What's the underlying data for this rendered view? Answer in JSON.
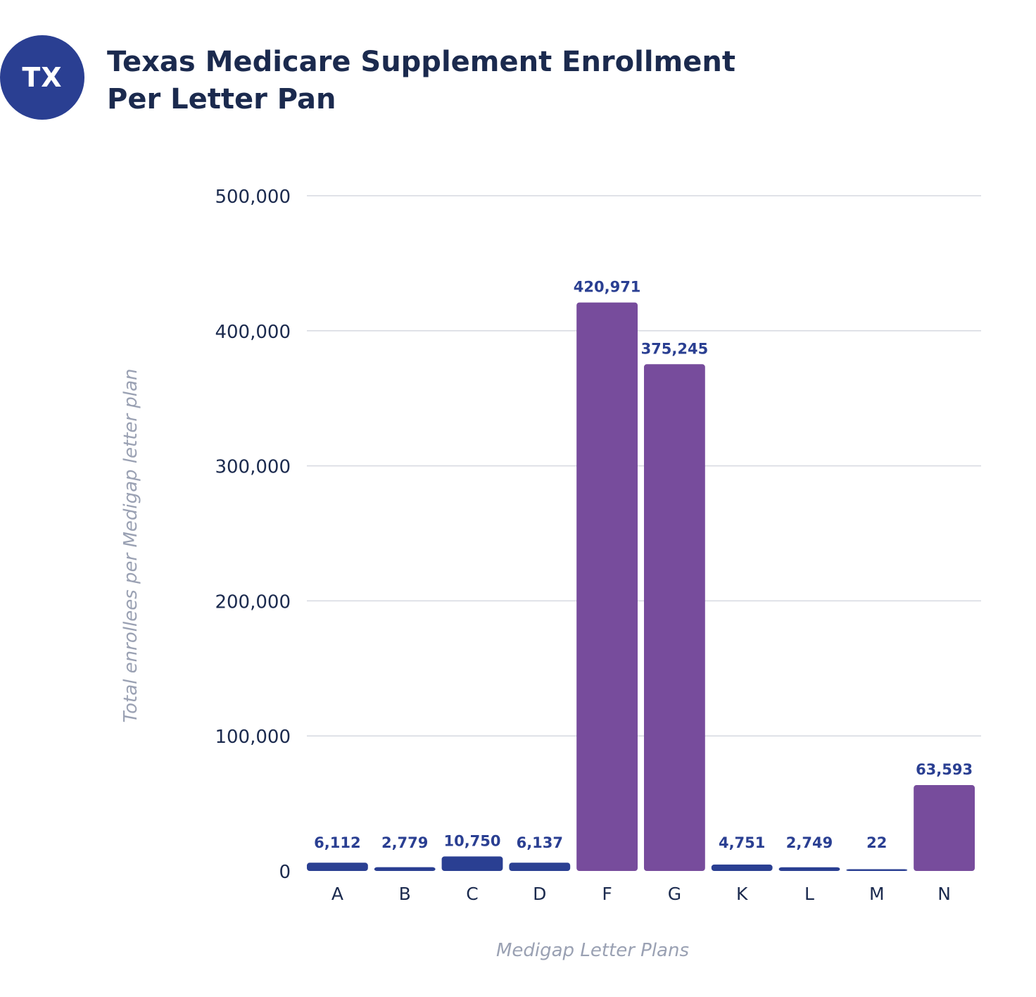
{
  "badge": {
    "text": "TX"
  },
  "title": {
    "line1": "Texas Medicare Supplement Enrollment",
    "line2": "Per Letter Pan"
  },
  "colors": {
    "primary": "#2a3f92",
    "highlight": "#774c9c",
    "grid": "#d6d9e0",
    "text": "#1b2a4e",
    "axis_label": "#9aa1b3"
  },
  "chart_data": {
    "type": "bar",
    "title": "Texas Medicare Supplement Enrollment Per Letter Pan",
    "xlabel": "Medigap Letter Plans",
    "ylabel": "Total enrollees per Medigap letter plan",
    "categories": [
      "A",
      "B",
      "C",
      "D",
      "F",
      "G",
      "K",
      "L",
      "M",
      "N"
    ],
    "values": [
      6112,
      2779,
      10750,
      6137,
      420971,
      375245,
      4751,
      2749,
      22,
      63593
    ],
    "value_labels": [
      "6,112",
      "2,779",
      "10,750",
      "6,137",
      "420,971",
      "375,245",
      "4,751",
      "2,749",
      "22",
      "63,593"
    ],
    "bar_colors": [
      "#2a3f92",
      "#2a3f92",
      "#2a3f92",
      "#2a3f92",
      "#774c9c",
      "#774c9c",
      "#2a3f92",
      "#2a3f92",
      "#2a3f92",
      "#774c9c"
    ],
    "ylim": [
      0,
      500000
    ],
    "yticks": [
      0,
      100000,
      200000,
      300000,
      400000,
      500000
    ],
    "ytick_labels": [
      "0",
      "100,000",
      "200,000",
      "300,000",
      "400,000",
      "500,000"
    ],
    "grid": true,
    "legend": "none"
  }
}
